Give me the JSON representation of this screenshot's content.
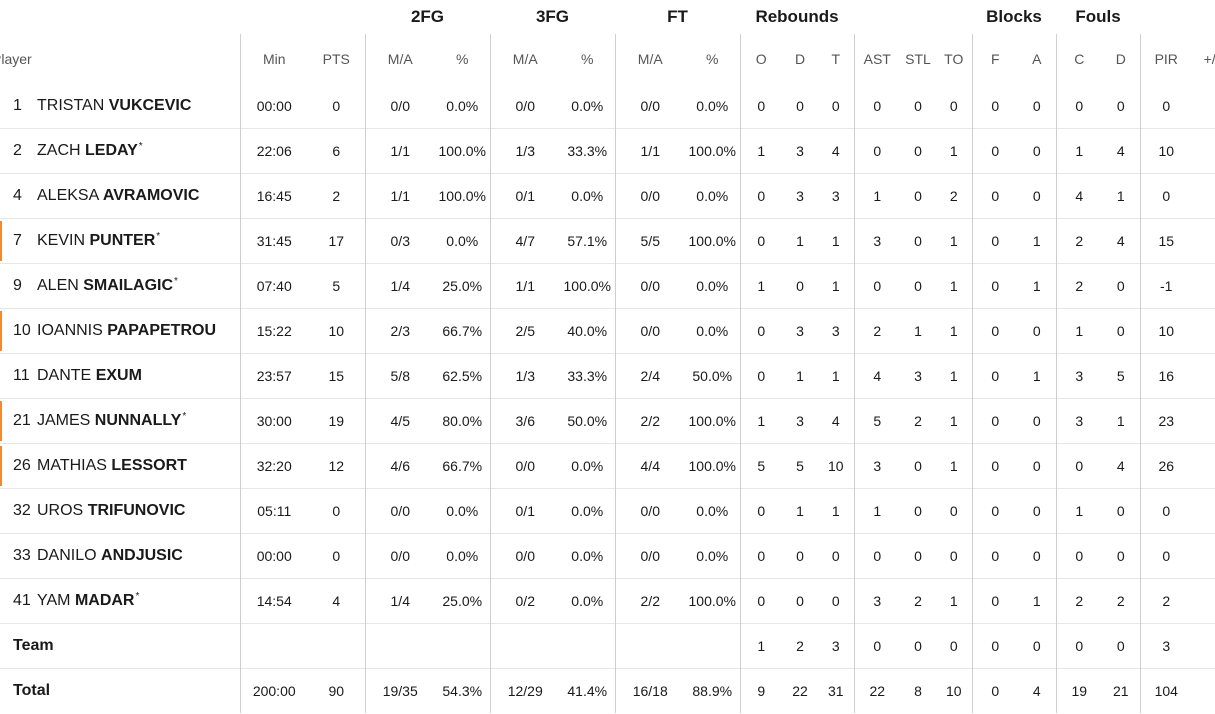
{
  "groups": {
    "twofg": "2FG",
    "threefg": "3FG",
    "ft": "FT",
    "rebounds": "Rebounds",
    "blocks": "Blocks",
    "fouls": "Fouls"
  },
  "columns": {
    "player": "Player",
    "min": "Min",
    "pts": "PTS",
    "fg2_ma": "M/A",
    "fg2_pct": "%",
    "fg3_ma": "M/A",
    "fg3_pct": "%",
    "ft_ma": "M/A",
    "ft_pct": "%",
    "reb_o": "O",
    "reb_d": "D",
    "reb_t": "T",
    "ast": "AST",
    "stl": "STL",
    "to": "TO",
    "blk_f": "F",
    "blk_a": "A",
    "foul_c": "C",
    "foul_d": "D",
    "pir": "PIR",
    "pm": "+/-"
  },
  "players": [
    {
      "num": "1",
      "first": "TRISTAN",
      "last": "VUKCEVIC",
      "starter": false,
      "star": "",
      "min": "00:00",
      "pts": "0",
      "fg2_ma": "0/0",
      "fg2_pct": "0.0%",
      "fg3_ma": "0/0",
      "fg3_pct": "0.0%",
      "ft_ma": "0/0",
      "ft_pct": "0.0%",
      "reb_o": "0",
      "reb_d": "0",
      "reb_t": "0",
      "ast": "0",
      "stl": "0",
      "to": "0",
      "blk_f": "0",
      "blk_a": "0",
      "foul_c": "0",
      "foul_d": "0",
      "pir": "0",
      "pm": ""
    },
    {
      "num": "2",
      "first": "ZACH",
      "last": "LEDAY",
      "starter": false,
      "star": "*",
      "min": "22:06",
      "pts": "6",
      "fg2_ma": "1/1",
      "fg2_pct": "100.0%",
      "fg3_ma": "1/3",
      "fg3_pct": "33.3%",
      "ft_ma": "1/1",
      "ft_pct": "100.0%",
      "reb_o": "1",
      "reb_d": "3",
      "reb_t": "4",
      "ast": "0",
      "stl": "0",
      "to": "1",
      "blk_f": "0",
      "blk_a": "0",
      "foul_c": "1",
      "foul_d": "4",
      "pir": "10",
      "pm": ""
    },
    {
      "num": "4",
      "first": "ALEKSA",
      "last": "AVRAMOVIC",
      "starter": false,
      "star": "",
      "min": "16:45",
      "pts": "2",
      "fg2_ma": "1/1",
      "fg2_pct": "100.0%",
      "fg3_ma": "0/1",
      "fg3_pct": "0.0%",
      "ft_ma": "0/0",
      "ft_pct": "0.0%",
      "reb_o": "0",
      "reb_d": "3",
      "reb_t": "3",
      "ast": "1",
      "stl": "0",
      "to": "2",
      "blk_f": "0",
      "blk_a": "0",
      "foul_c": "4",
      "foul_d": "1",
      "pir": "0",
      "pm": ""
    },
    {
      "num": "7",
      "first": "KEVIN",
      "last": "PUNTER",
      "starter": true,
      "star": "*",
      "min": "31:45",
      "pts": "17",
      "fg2_ma": "0/3",
      "fg2_pct": "0.0%",
      "fg3_ma": "4/7",
      "fg3_pct": "57.1%",
      "ft_ma": "5/5",
      "ft_pct": "100.0%",
      "reb_o": "0",
      "reb_d": "1",
      "reb_t": "1",
      "ast": "3",
      "stl": "0",
      "to": "1",
      "blk_f": "0",
      "blk_a": "1",
      "foul_c": "2",
      "foul_d": "4",
      "pir": "15",
      "pm": ""
    },
    {
      "num": "9",
      "first": "ALEN",
      "last": "SMAILAGIC",
      "starter": false,
      "star": "*",
      "min": "07:40",
      "pts": "5",
      "fg2_ma": "1/4",
      "fg2_pct": "25.0%",
      "fg3_ma": "1/1",
      "fg3_pct": "100.0%",
      "ft_ma": "0/0",
      "ft_pct": "0.0%",
      "reb_o": "1",
      "reb_d": "0",
      "reb_t": "1",
      "ast": "0",
      "stl": "0",
      "to": "1",
      "blk_f": "0",
      "blk_a": "1",
      "foul_c": "2",
      "foul_d": "0",
      "pir": "-1",
      "pm": ""
    },
    {
      "num": "10",
      "first": "IOANNIS",
      "last": "PAPAPETROU",
      "starter": true,
      "star": "",
      "min": "15:22",
      "pts": "10",
      "fg2_ma": "2/3",
      "fg2_pct": "66.7%",
      "fg3_ma": "2/5",
      "fg3_pct": "40.0%",
      "ft_ma": "0/0",
      "ft_pct": "0.0%",
      "reb_o": "0",
      "reb_d": "3",
      "reb_t": "3",
      "ast": "2",
      "stl": "1",
      "to": "1",
      "blk_f": "0",
      "blk_a": "0",
      "foul_c": "1",
      "foul_d": "0",
      "pir": "10",
      "pm": ""
    },
    {
      "num": "11",
      "first": "DANTE",
      "last": "EXUM",
      "starter": false,
      "star": "",
      "min": "23:57",
      "pts": "15",
      "fg2_ma": "5/8",
      "fg2_pct": "62.5%",
      "fg3_ma": "1/3",
      "fg3_pct": "33.3%",
      "ft_ma": "2/4",
      "ft_pct": "50.0%",
      "reb_o": "0",
      "reb_d": "1",
      "reb_t": "1",
      "ast": "4",
      "stl": "3",
      "to": "1",
      "blk_f": "0",
      "blk_a": "1",
      "foul_c": "3",
      "foul_d": "5",
      "pir": "16",
      "pm": ""
    },
    {
      "num": "21",
      "first": "JAMES",
      "last": "NUNNALLY",
      "starter": true,
      "star": "*",
      "min": "30:00",
      "pts": "19",
      "fg2_ma": "4/5",
      "fg2_pct": "80.0%",
      "fg3_ma": "3/6",
      "fg3_pct": "50.0%",
      "ft_ma": "2/2",
      "ft_pct": "100.0%",
      "reb_o": "1",
      "reb_d": "3",
      "reb_t": "4",
      "ast": "5",
      "stl": "2",
      "to": "1",
      "blk_f": "0",
      "blk_a": "0",
      "foul_c": "3",
      "foul_d": "1",
      "pir": "23",
      "pm": ""
    },
    {
      "num": "26",
      "first": "MATHIAS",
      "last": "LESSORT",
      "starter": true,
      "star": "",
      "min": "32:20",
      "pts": "12",
      "fg2_ma": "4/6",
      "fg2_pct": "66.7%",
      "fg3_ma": "0/0",
      "fg3_pct": "0.0%",
      "ft_ma": "4/4",
      "ft_pct": "100.0%",
      "reb_o": "5",
      "reb_d": "5",
      "reb_t": "10",
      "ast": "3",
      "stl": "0",
      "to": "1",
      "blk_f": "0",
      "blk_a": "0",
      "foul_c": "0",
      "foul_d": "4",
      "pir": "26",
      "pm": ""
    },
    {
      "num": "32",
      "first": "UROS",
      "last": "TRIFUNOVIC",
      "starter": false,
      "star": "",
      "min": "05:11",
      "pts": "0",
      "fg2_ma": "0/0",
      "fg2_pct": "0.0%",
      "fg3_ma": "0/1",
      "fg3_pct": "0.0%",
      "ft_ma": "0/0",
      "ft_pct": "0.0%",
      "reb_o": "0",
      "reb_d": "1",
      "reb_t": "1",
      "ast": "1",
      "stl": "0",
      "to": "0",
      "blk_f": "0",
      "blk_a": "0",
      "foul_c": "1",
      "foul_d": "0",
      "pir": "0",
      "pm": ""
    },
    {
      "num": "33",
      "first": "DANILO",
      "last": "ANDJUSIC",
      "starter": false,
      "star": "",
      "min": "00:00",
      "pts": "0",
      "fg2_ma": "0/0",
      "fg2_pct": "0.0%",
      "fg3_ma": "0/0",
      "fg3_pct": "0.0%",
      "ft_ma": "0/0",
      "ft_pct": "0.0%",
      "reb_o": "0",
      "reb_d": "0",
      "reb_t": "0",
      "ast": "0",
      "stl": "0",
      "to": "0",
      "blk_f": "0",
      "blk_a": "0",
      "foul_c": "0",
      "foul_d": "0",
      "pir": "0",
      "pm": ""
    },
    {
      "num": "41",
      "first": "YAM",
      "last": "MADAR",
      "starter": false,
      "star": "*",
      "min": "14:54",
      "pts": "4",
      "fg2_ma": "1/4",
      "fg2_pct": "25.0%",
      "fg3_ma": "0/2",
      "fg3_pct": "0.0%",
      "ft_ma": "2/2",
      "ft_pct": "100.0%",
      "reb_o": "0",
      "reb_d": "0",
      "reb_t": "0",
      "ast": "3",
      "stl": "2",
      "to": "1",
      "blk_f": "0",
      "blk_a": "1",
      "foul_c": "2",
      "foul_d": "2",
      "pir": "2",
      "pm": ""
    }
  ],
  "team": {
    "label": "Team",
    "min": "",
    "pts": "",
    "fg2_ma": "",
    "fg2_pct": "",
    "fg3_ma": "",
    "fg3_pct": "",
    "ft_ma": "",
    "ft_pct": "",
    "reb_o": "1",
    "reb_d": "2",
    "reb_t": "3",
    "ast": "0",
    "stl": "0",
    "to": "0",
    "blk_f": "0",
    "blk_a": "0",
    "foul_c": "0",
    "foul_d": "0",
    "pir": "3",
    "pm": ""
  },
  "total": {
    "label": "Total",
    "min": "200:00",
    "pts": "90",
    "fg2_ma": "19/35",
    "fg2_pct": "54.3%",
    "fg3_ma": "12/29",
    "fg3_pct": "41.4%",
    "ft_ma": "16/18",
    "ft_pct": "88.9%",
    "reb_o": "9",
    "reb_d": "22",
    "reb_t": "31",
    "ast": "22",
    "stl": "8",
    "to": "10",
    "blk_f": "0",
    "blk_a": "4",
    "foul_c": "19",
    "foul_d": "21",
    "pir": "104",
    "pm": ""
  }
}
